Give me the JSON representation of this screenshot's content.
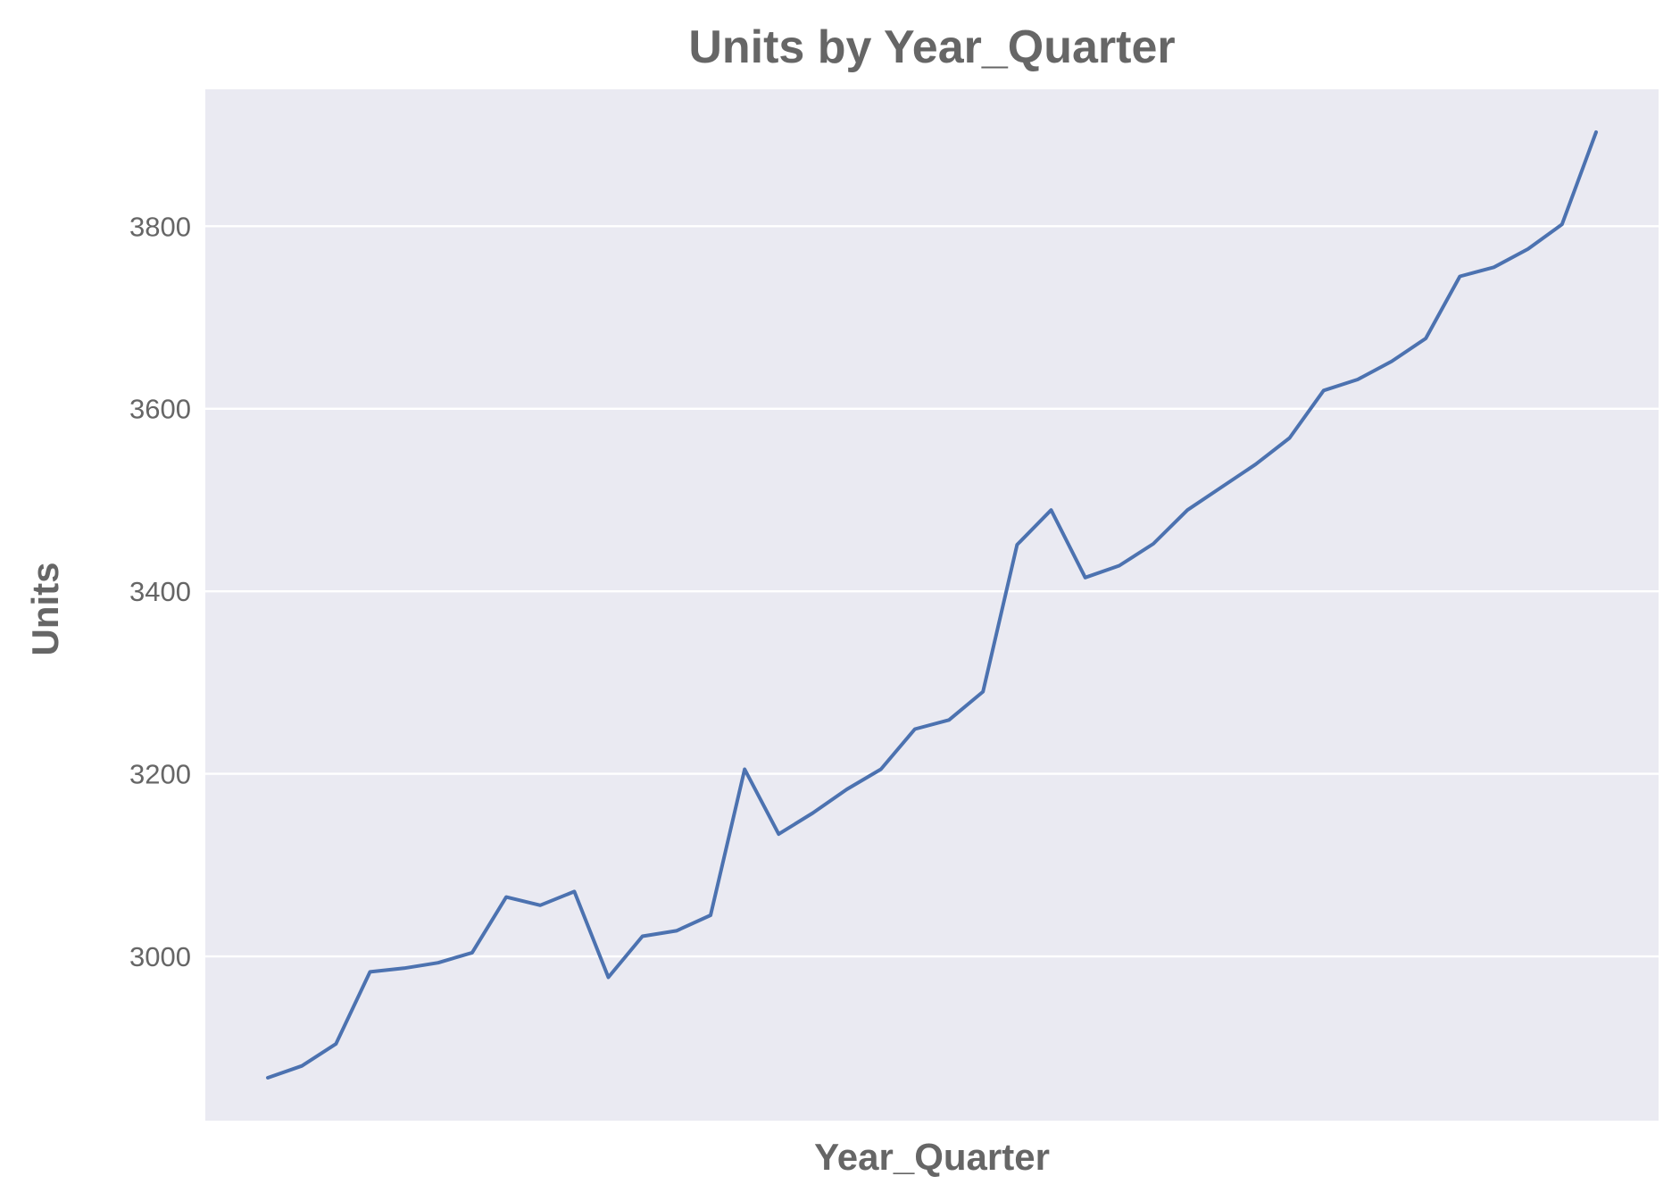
{
  "chart_data": {
    "type": "line",
    "title": "Units by Year_Quarter",
    "xlabel": "Year_Quarter",
    "ylabel": "Units",
    "ylim": [
      2820,
      3950
    ],
    "yticks": [
      3000,
      3200,
      3400,
      3600,
      3800
    ],
    "grid": true,
    "background_color": "#eaeaf2",
    "grid_color": "#ffffff",
    "text_color": "#666666",
    "series": [
      {
        "color": "#4c72b0",
        "values": [
          2867,
          2880,
          2904,
          2983,
          2987,
          2993,
          3004,
          3065,
          3056,
          3071,
          2977,
          3022,
          3028,
          3045,
          3205,
          3134,
          3157,
          3183,
          3205,
          3249,
          3259,
          3290,
          3451,
          3489,
          3415,
          3428,
          3452,
          3489,
          3514,
          3539,
          3568,
          3620,
          3632,
          3652,
          3677,
          3745,
          3755,
          3775,
          3802,
          3903
        ]
      }
    ]
  }
}
